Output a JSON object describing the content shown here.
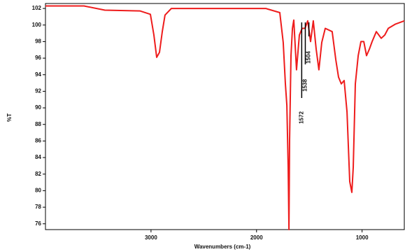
{
  "chart_data": {
    "type": "line",
    "xlabel": "Wavenumbers (cm-1)",
    "ylabel": "%T",
    "xlim": [
      4000,
      600
    ],
    "ylim": [
      75.3,
      102.6
    ],
    "xticks": [
      3000,
      2000,
      1000
    ],
    "yticks": [
      102,
      100,
      98,
      96,
      94,
      92,
      90,
      88,
      86,
      84,
      82,
      80,
      78,
      76
    ],
    "grid": false,
    "annotations": [
      {
        "text": "1572",
        "x": 1572
      },
      {
        "text": "1538",
        "x": 1538
      },
      {
        "text": "1504",
        "x": 1504
      }
    ],
    "x": [
      4000,
      3635,
      3437,
      3105,
      3006,
      2973,
      2946,
      2920,
      2893,
      2867,
      2807,
      2442,
      1912,
      1780,
      1747,
      1727,
      1713,
      1700,
      1693,
      1687,
      1674,
      1660,
      1647,
      1621,
      1594,
      1568,
      1541,
      1515,
      1488,
      1462,
      1435,
      1409,
      1382,
      1349,
      1283,
      1249,
      1223,
      1197,
      1170,
      1143,
      1117,
      1097,
      1084,
      1064,
      1037,
      1011,
      984,
      958,
      931,
      905,
      865,
      819,
      785,
      752,
      686,
      600
    ],
    "series": [
      {
        "name": "%T",
        "color": "#ee1c1c",
        "values": [
          102.3,
          102.3,
          101.8,
          101.7,
          101.3,
          98.8,
          96.1,
          96.7,
          99.2,
          101.2,
          102,
          102,
          102,
          101.5,
          97.9,
          92.9,
          90.3,
          82.8,
          75.3,
          86.1,
          96.3,
          99.6,
          100.6,
          94.6,
          98.8,
          99.6,
          99.6,
          100.5,
          98.0,
          100.5,
          97.1,
          94.6,
          97.9,
          99.6,
          99.2,
          95.8,
          93.7,
          92.9,
          93.3,
          89.5,
          81.1,
          79.8,
          82.8,
          92.9,
          96.3,
          98.0,
          98.0,
          96.3,
          97.1,
          98.0,
          99.2,
          98.4,
          98.8,
          99.6,
          100.1,
          100.5
        ]
      }
    ]
  }
}
